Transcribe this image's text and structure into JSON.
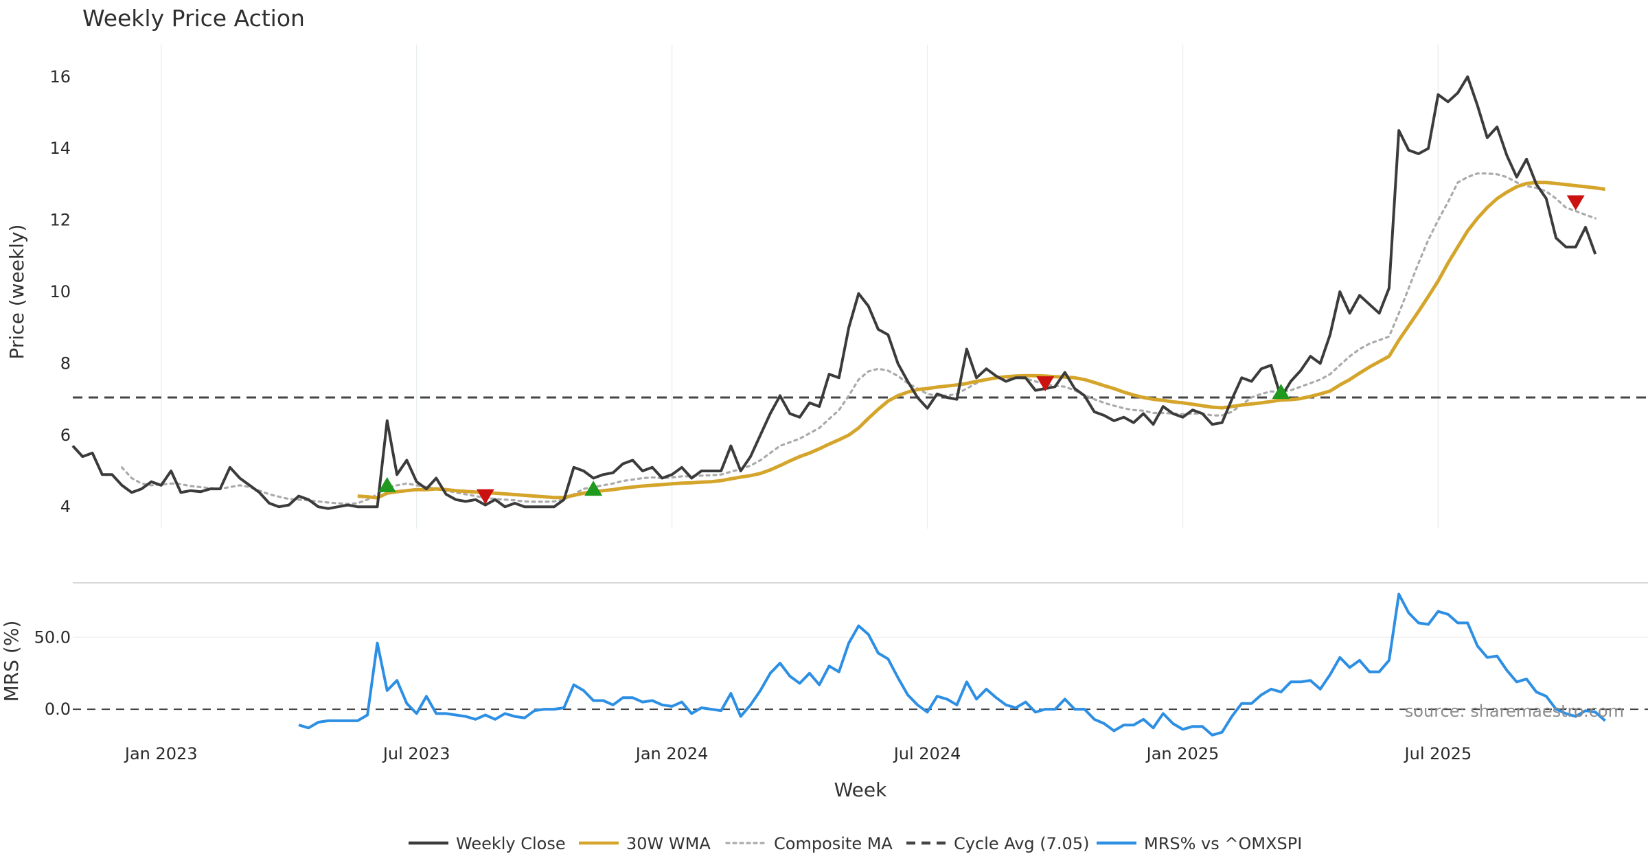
{
  "chart_data": {
    "type": "line",
    "title": "Weekly Price Action",
    "source_note": "source: sharemaestro.com",
    "x_axis": {
      "label": "Week",
      "tick_labels": [
        "Jan 2023",
        "Jul 2023",
        "Jan 2024",
        "Jul 2024",
        "Jan 2025",
        "Jul 2025"
      ],
      "tick_weeks": [
        9,
        35,
        61,
        87,
        113,
        139
      ]
    },
    "price_panel": {
      "ylabel": "Price (weekly)",
      "yticks": [
        4,
        6,
        8,
        10,
        12,
        14,
        16
      ],
      "ylim": [
        3.2,
        16.8
      ],
      "cycle_avg": 7.05,
      "series": {
        "weekly_close": [
          5.7,
          5.4,
          5.5,
          4.9,
          4.9,
          4.6,
          4.4,
          4.5,
          4.7,
          4.6,
          5.0,
          4.4,
          4.45,
          4.42,
          4.5,
          4.5,
          5.1,
          4.8,
          4.6,
          4.4,
          4.1,
          4.0,
          4.05,
          4.3,
          4.2,
          4.0,
          3.95,
          4.0,
          4.05,
          4.0,
          4.0,
          4.0,
          6.4,
          4.9,
          5.3,
          4.7,
          4.5,
          4.8,
          4.35,
          4.2,
          4.15,
          4.2,
          4.05,
          4.2,
          4.0,
          4.1,
          4.0,
          4.0,
          4.0,
          4.0,
          4.2,
          5.1,
          5.0,
          4.8,
          4.9,
          4.95,
          5.2,
          5.3,
          5.0,
          5.1,
          4.8,
          4.9,
          5.1,
          4.8,
          5.0,
          5.0,
          5.0,
          5.7,
          5.0,
          5.4,
          6.0,
          6.6,
          7.1,
          6.6,
          6.5,
          6.9,
          6.8,
          7.7,
          7.6,
          9.0,
          9.95,
          9.6,
          8.95,
          8.8,
          8.0,
          7.5,
          7.05,
          6.75,
          7.15,
          7.05,
          7.0,
          8.4,
          7.6,
          7.85,
          7.65,
          7.5,
          7.6,
          7.6,
          7.25,
          7.3,
          7.35,
          7.75,
          7.3,
          7.1,
          6.65,
          6.55,
          6.4,
          6.5,
          6.35,
          6.6,
          6.3,
          6.8,
          6.6,
          6.5,
          6.7,
          6.6,
          6.3,
          6.35,
          7.0,
          7.6,
          7.5,
          7.85,
          7.95,
          7.05,
          7.5,
          7.8,
          8.2,
          8.0,
          8.8,
          10.0,
          9.4,
          9.9,
          9.65,
          9.4,
          10.1,
          14.5,
          13.95,
          13.85,
          14.0,
          15.5,
          15.3,
          15.55,
          16.0,
          15.2,
          14.3,
          14.6,
          13.8,
          13.2,
          13.7,
          13.0,
          12.6,
          11.5,
          11.25,
          11.25,
          11.8,
          11.05
        ],
        "wma_30w": [
          null,
          null,
          null,
          null,
          null,
          null,
          null,
          null,
          null,
          null,
          null,
          null,
          null,
          null,
          null,
          null,
          null,
          null,
          null,
          null,
          null,
          null,
          null,
          null,
          null,
          null,
          null,
          null,
          null,
          4.3,
          4.28,
          4.25,
          4.38,
          4.42,
          4.45,
          4.48,
          4.48,
          4.5,
          4.48,
          4.45,
          4.43,
          4.41,
          4.4,
          4.38,
          4.36,
          4.34,
          4.32,
          4.3,
          4.28,
          4.26,
          4.26,
          4.32,
          4.38,
          4.42,
          4.45,
          4.48,
          4.52,
          4.55,
          4.58,
          4.6,
          4.62,
          4.64,
          4.66,
          4.67,
          4.69,
          4.7,
          4.73,
          4.78,
          4.83,
          4.87,
          4.93,
          5.03,
          5.15,
          5.28,
          5.4,
          5.5,
          5.62,
          5.75,
          5.87,
          6.0,
          6.2,
          6.47,
          6.72,
          6.95,
          7.1,
          7.2,
          7.27,
          7.3,
          7.34,
          7.37,
          7.4,
          7.44,
          7.5,
          7.55,
          7.6,
          7.63,
          7.65,
          7.66,
          7.66,
          7.65,
          7.63,
          7.62,
          7.6,
          7.55,
          7.47,
          7.38,
          7.3,
          7.2,
          7.12,
          7.05,
          7.0,
          6.97,
          6.93,
          6.9,
          6.86,
          6.82,
          6.78,
          6.76,
          6.8,
          6.84,
          6.87,
          6.9,
          6.94,
          6.98,
          6.99,
          7.02,
          7.08,
          7.15,
          7.23,
          7.4,
          7.55,
          7.73,
          7.9,
          8.05,
          8.2,
          8.65,
          9.05,
          9.45,
          9.87,
          10.3,
          10.8,
          11.25,
          11.7,
          12.05,
          12.35,
          12.6,
          12.78,
          12.93,
          13.02,
          13.05,
          13.05,
          13.02,
          12.99,
          12.96,
          12.93,
          12.9,
          12.86
        ],
        "composite_ma": [
          null,
          null,
          null,
          null,
          null,
          5.1,
          4.8,
          4.65,
          4.6,
          4.62,
          4.65,
          4.63,
          4.58,
          4.55,
          4.52,
          4.5,
          4.55,
          4.6,
          4.55,
          4.45,
          4.35,
          4.28,
          4.22,
          4.2,
          4.18,
          4.15,
          4.12,
          4.1,
          4.08,
          4.1,
          4.2,
          4.35,
          4.55,
          4.6,
          4.65,
          4.6,
          4.55,
          4.5,
          4.45,
          4.4,
          4.35,
          4.3,
          4.25,
          4.22,
          4.2,
          4.18,
          4.15,
          4.14,
          4.14,
          4.15,
          4.2,
          4.35,
          4.5,
          4.55,
          4.6,
          4.65,
          4.72,
          4.76,
          4.8,
          4.82,
          4.8,
          4.82,
          4.85,
          4.85,
          4.87,
          4.88,
          4.9,
          4.98,
          5.05,
          5.15,
          5.3,
          5.5,
          5.7,
          5.8,
          5.9,
          6.05,
          6.2,
          6.45,
          6.7,
          7.1,
          7.55,
          7.78,
          7.85,
          7.8,
          7.65,
          7.45,
          7.3,
          7.15,
          7.1,
          7.1,
          7.15,
          7.3,
          7.45,
          7.55,
          7.6,
          7.6,
          7.6,
          7.58,
          7.5,
          7.42,
          7.38,
          7.35,
          7.25,
          7.12,
          7.0,
          6.9,
          6.82,
          6.75,
          6.7,
          6.68,
          6.62,
          6.62,
          6.6,
          6.58,
          6.6,
          6.6,
          6.55,
          6.55,
          6.65,
          6.85,
          7.05,
          7.15,
          7.22,
          7.2,
          7.25,
          7.35,
          7.45,
          7.55,
          7.7,
          7.95,
          8.2,
          8.4,
          8.55,
          8.65,
          8.75,
          9.4,
          10.1,
          10.8,
          11.45,
          12.0,
          12.5,
          13.05,
          13.2,
          13.3,
          13.3,
          13.28,
          13.2,
          13.05,
          12.95,
          12.9,
          12.8,
          12.6,
          12.35,
          12.25,
          12.15,
          12.05
        ],
        "mrs_pct_vs_OMXSPI": [
          null,
          null,
          null,
          null,
          null,
          null,
          null,
          null,
          null,
          null,
          null,
          null,
          null,
          null,
          null,
          null,
          null,
          null,
          null,
          null,
          null,
          null,
          null,
          -11,
          -13,
          -9,
          -8,
          -8,
          -8,
          -8,
          -4,
          46,
          13,
          20,
          4,
          -3,
          9,
          -3,
          -3,
          -4,
          -5,
          -7,
          -4,
          -7,
          -3,
          -5,
          -6,
          -1,
          0,
          0,
          1,
          17,
          13,
          6,
          6,
          3,
          8,
          8,
          5,
          6,
          3,
          2,
          5,
          -3,
          1,
          0,
          -1,
          11,
          -5,
          3,
          13,
          25,
          32,
          23,
          18,
          25,
          17,
          30,
          26,
          46,
          58,
          52,
          39,
          35,
          22,
          10,
          3,
          -2,
          9,
          7,
          3,
          19,
          7,
          14,
          8,
          3,
          1,
          5,
          -2,
          0,
          0,
          7,
          0,
          0,
          -7,
          -10,
          -15,
          -11,
          -11,
          -7,
          -13,
          -3,
          -10,
          -14,
          -12,
          -12,
          -18,
          -16,
          -5,
          4,
          4,
          10,
          14,
          12,
          19,
          19,
          20,
          14,
          24,
          36,
          29,
          34,
          26,
          26,
          34,
          80,
          67,
          60,
          59,
          68,
          66,
          60,
          60,
          44,
          36,
          37,
          27,
          19,
          21,
          12,
          9,
          0,
          -3,
          -5,
          -1,
          -2,
          -8
        ]
      },
      "buy_signal_weeks": [
        32,
        53,
        123
      ],
      "buy_signal_prices": [
        4.6,
        4.5,
        7.2
      ],
      "sell_signal_weeks": [
        42,
        99,
        153
      ],
      "sell_signal_prices": [
        4.3,
        7.45,
        12.5
      ]
    },
    "mrs_panel": {
      "ylabel": "MRS (%)",
      "yticks": [
        0.0,
        50.0
      ],
      "ytick_labels": [
        "0.0",
        "50.0"
      ],
      "ylim": [
        -20,
        85
      ]
    },
    "legend": [
      {
        "key": "weekly_close",
        "label": "Weekly Close",
        "color": "#3b3b3b",
        "style": "solid"
      },
      {
        "key": "wma_30w",
        "label": "30W WMA",
        "color": "#d4a52a",
        "style": "solid"
      },
      {
        "key": "composite_ma",
        "label": "Composite MA",
        "color": "#aaaaaa",
        "style": "dotted"
      },
      {
        "key": "cycle_avg",
        "label": "Cycle Avg (7.05)",
        "color": "#444444",
        "style": "dashed"
      },
      {
        "key": "mrs",
        "label": "MRS% vs ^OMXSPI",
        "color": "#2d8fe3",
        "style": "solid"
      }
    ],
    "colors": {
      "buy_marker": "#1f9a1f",
      "sell_marker": "#cc1111",
      "separator": "#cccccc"
    }
  }
}
